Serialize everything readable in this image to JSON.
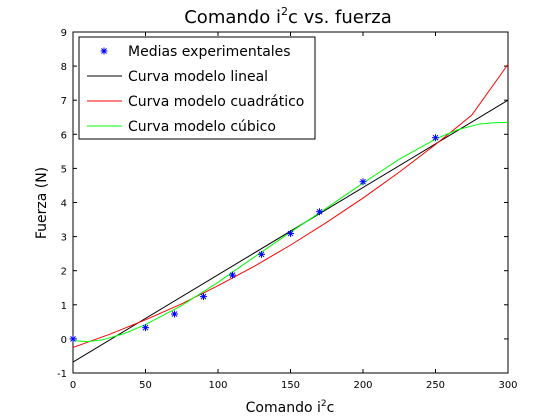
{
  "chart_data": {
    "type": "line",
    "title": {
      "base": "Comando i",
      "sup": "2",
      "rest": "c vs. fuerza"
    },
    "xlabel": {
      "base": "Comando i",
      "sup": "2",
      "rest": "c"
    },
    "ylabel": "Fuerza (N)",
    "xlim": [
      0,
      300
    ],
    "ylim": [
      -1,
      9
    ],
    "xticks": [
      0,
      50,
      100,
      150,
      200,
      250,
      300
    ],
    "yticks": [
      -1,
      0,
      1,
      2,
      3,
      4,
      5,
      6,
      7,
      8,
      9
    ],
    "grid": false,
    "legend_position": "top-left",
    "series": [
      {
        "name": "Medias experimentales",
        "kind": "scatter",
        "marker": "*",
        "color": "#0000ff",
        "x": [
          0,
          50,
          70,
          90,
          110,
          130,
          150,
          170,
          200,
          250
        ],
        "y": [
          0.0,
          0.33,
          0.73,
          1.24,
          1.87,
          2.48,
          3.09,
          3.73,
          4.61,
          5.9
        ]
      },
      {
        "name": "Curva modelo lineal",
        "kind": "line",
        "color": "#000000",
        "x": [
          0,
          300
        ],
        "y": [
          -0.68,
          7.0
        ]
      },
      {
        "name": "Curva modelo cuadrático",
        "kind": "line",
        "color": "#ff0000",
        "x": [
          0,
          25,
          50,
          75,
          100,
          125,
          150,
          175,
          200,
          225,
          250,
          275,
          300
        ],
        "y": [
          -0.25,
          0.13,
          0.56,
          1.03,
          1.56,
          2.13,
          2.75,
          3.42,
          4.13,
          4.89,
          5.7,
          6.56,
          8.05
        ]
      },
      {
        "name": "Curva modelo cúbico",
        "kind": "line",
        "color": "#00ff00",
        "x": [
          0,
          10,
          20,
          35,
          50,
          75,
          100,
          125,
          150,
          175,
          200,
          225,
          250,
          265,
          280,
          290,
          300
        ],
        "y": [
          -0.05,
          -0.08,
          -0.03,
          0.15,
          0.42,
          0.98,
          1.66,
          2.4,
          3.13,
          3.84,
          4.57,
          5.27,
          5.86,
          6.13,
          6.3,
          6.34,
          6.35
        ]
      }
    ]
  }
}
